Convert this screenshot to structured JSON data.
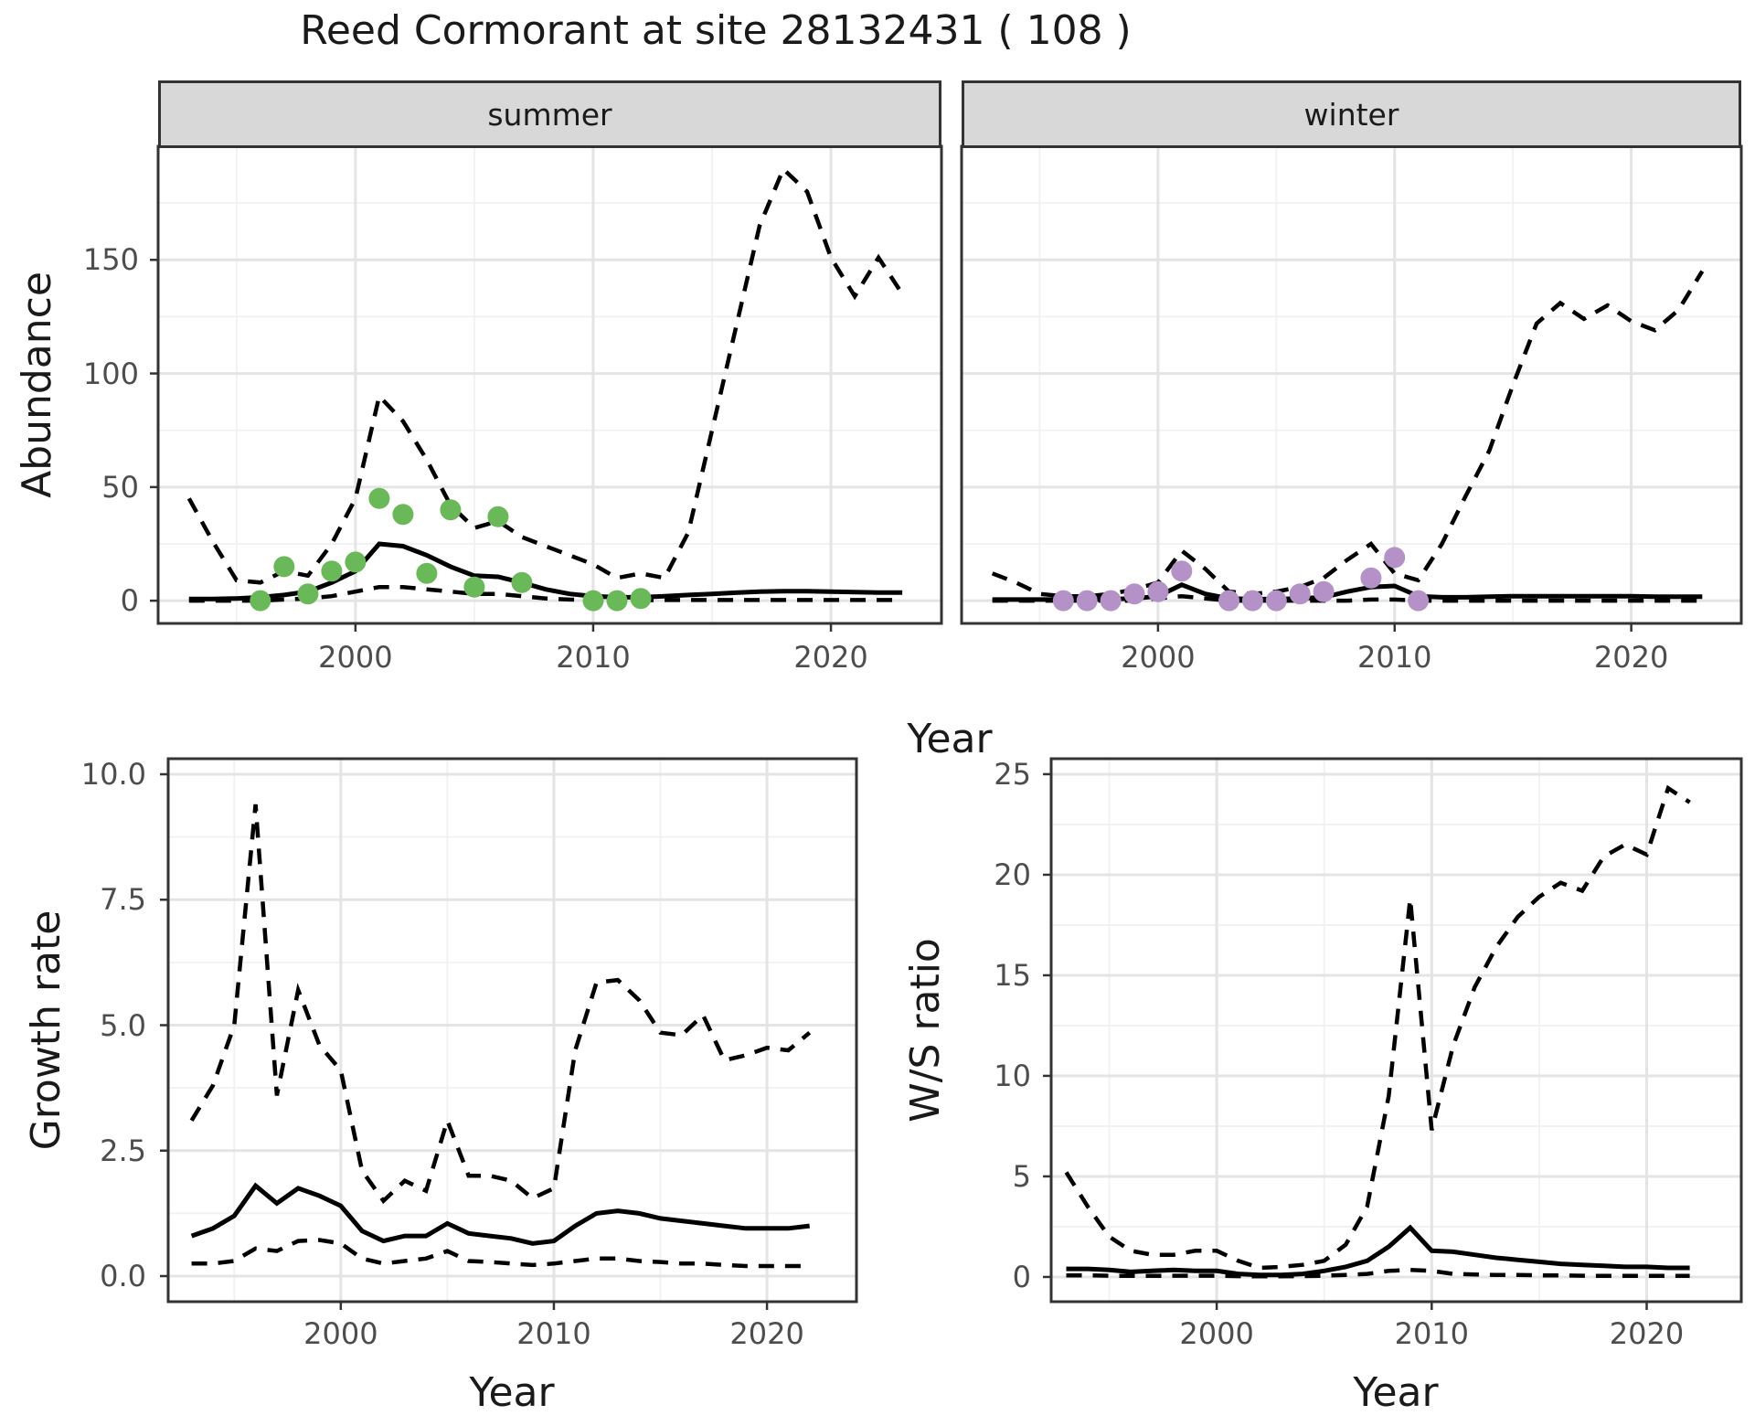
{
  "title": "Reed Cormorant at site 28132431 ( 108 )",
  "axes": {
    "x_label": "Year",
    "y_label_top": "Abundance",
    "y_label_growth": "Growth rate",
    "y_label_ws": "W/S ratio"
  },
  "colors": {
    "observed_summer": "#69B959",
    "observed_winter": "#B492C8",
    "line": "#000000",
    "grid_major": "#E4E4E4",
    "grid_minor": "#F1F1F1",
    "panel_border": "#333333",
    "strip_bg": "#D8D8D8",
    "tick_text": "#4D4D4D",
    "panel_bg": "#FFFFFF"
  },
  "chart_data": [
    {
      "id": "abundance-summer",
      "type": "line",
      "facet_label": "summer",
      "title": "",
      "xlabel": "Year",
      "ylabel": "Abundance",
      "xlim": [
        1991.7,
        2024.65
      ],
      "ylim": [
        -10,
        200
      ],
      "grid": true,
      "legend": "none",
      "x_major": [
        2000,
        2010,
        2020
      ],
      "x_minor": [
        1995,
        2005,
        2015
      ],
      "y_major": [
        0,
        50,
        100,
        150
      ],
      "y_minor": [
        25,
        75,
        125,
        175
      ],
      "x_tick_labels": [
        "2000",
        "2010",
        "2020"
      ],
      "y_tick_labels": [
        "0",
        "50",
        "100",
        "150"
      ],
      "x": [
        1993,
        1994,
        1995,
        1996,
        1997,
        1998,
        1999,
        2000,
        2001,
        2002,
        2003,
        2004,
        2005,
        2006,
        2007,
        2008,
        2009,
        2010,
        2011,
        2012,
        2013,
        2014,
        2015,
        2016,
        2017,
        2018,
        2019,
        2020,
        2021,
        2022,
        2023
      ],
      "series": [
        {
          "name": "upper-ci",
          "style": "dashed",
          "values": [
            45,
            26,
            9,
            8,
            13,
            11,
            25,
            45,
            90,
            79,
            62,
            42,
            32,
            35,
            28,
            24,
            20,
            16,
            10,
            12,
            10,
            30,
            75,
            120,
            165,
            190,
            180,
            151,
            134,
            151,
            135
          ]
        },
        {
          "name": "fitted-mean",
          "style": "solid",
          "values": [
            0.8,
            0.8,
            1,
            1.5,
            2.5,
            4,
            8,
            13,
            25,
            24,
            20,
            15,
            11,
            10.5,
            8,
            5,
            3,
            2,
            1.5,
            1.5,
            2,
            2.5,
            3,
            3.5,
            4,
            4.2,
            4.2,
            4,
            3.8,
            3.6,
            3.6
          ]
        },
        {
          "name": "lower-ci",
          "style": "dashed",
          "values": [
            0,
            0,
            0,
            0,
            0.5,
            1,
            2,
            4,
            6,
            6,
            5,
            4,
            3,
            3,
            2,
            1,
            0.5,
            0.3,
            0.2,
            0.2,
            0.3,
            0.3,
            0.3,
            0.3,
            0.3,
            0.3,
            0.3,
            0.3,
            0.3,
            0.3,
            0.3
          ]
        }
      ],
      "points": {
        "name": "observed-counts-summer",
        "color": "#69B959",
        "data": [
          [
            1996,
            0
          ],
          [
            1997,
            15
          ],
          [
            1998,
            3
          ],
          [
            1999,
            13
          ],
          [
            2000,
            17
          ],
          [
            2001,
            45
          ],
          [
            2002,
            38
          ],
          [
            2003,
            12
          ],
          [
            2004,
            40
          ],
          [
            2005,
            6
          ],
          [
            2006,
            37
          ],
          [
            2007,
            8
          ],
          [
            2010,
            0
          ],
          [
            2011,
            0
          ],
          [
            2012,
            1
          ]
        ]
      }
    },
    {
      "id": "abundance-winter",
      "type": "line",
      "facet_label": "winter",
      "title": "",
      "xlabel": "Year",
      "ylabel": "Abundance",
      "xlim": [
        1991.7,
        2024.65
      ],
      "ylim": [
        -10,
        200
      ],
      "grid": true,
      "legend": "none",
      "x_major": [
        2000,
        2010,
        2020
      ],
      "x_minor": [
        1995,
        2005,
        2015
      ],
      "y_major": [
        0,
        50,
        100,
        150
      ],
      "y_minor": [
        25,
        75,
        125,
        175
      ],
      "x_tick_labels": [
        "2000",
        "2010",
        "2020"
      ],
      "y_tick_labels": [],
      "x": [
        1993,
        1994,
        1995,
        1996,
        1997,
        1998,
        1999,
        2000,
        2001,
        2002,
        2003,
        2004,
        2005,
        2006,
        2007,
        2008,
        2009,
        2010,
        2011,
        2012,
        2013,
        2014,
        2015,
        2016,
        2017,
        2018,
        2019,
        2020,
        2021,
        2022,
        2023
      ],
      "series": [
        {
          "name": "upper-ci",
          "style": "dashed",
          "values": [
            12,
            8,
            3,
            2,
            2,
            3,
            5,
            8,
            22,
            14,
            4,
            3,
            4,
            6,
            10,
            18,
            25,
            12,
            9,
            25,
            46,
            66,
            95,
            122,
            131,
            124,
            130,
            123,
            119,
            128,
            145
          ]
        },
        {
          "name": "fitted-mean",
          "style": "solid",
          "values": [
            0.5,
            0.5,
            0.5,
            0.5,
            0.5,
            0.7,
            1,
            2,
            7,
            3,
            1,
            0.7,
            0.7,
            1,
            1.5,
            4,
            6,
            6.5,
            2,
            1.5,
            1.5,
            1.8,
            2,
            2,
            2,
            2,
            2,
            2,
            1.8,
            1.8,
            1.8
          ]
        },
        {
          "name": "lower-ci",
          "style": "dashed",
          "values": [
            0,
            0,
            0,
            0,
            0,
            0,
            0,
            1,
            2,
            1,
            0,
            0,
            0,
            0,
            0,
            0,
            0.5,
            0.5,
            0,
            0,
            0,
            0,
            0,
            0,
            0,
            0,
            0,
            0,
            0,
            0,
            0
          ]
        }
      ],
      "points": {
        "name": "observed-counts-winter",
        "color": "#B492C8",
        "data": [
          [
            1996,
            0
          ],
          [
            1997,
            0
          ],
          [
            1998,
            0
          ],
          [
            1999,
            3
          ],
          [
            2000,
            4
          ],
          [
            2001,
            13
          ],
          [
            2003,
            0
          ],
          [
            2004,
            0
          ],
          [
            2005,
            0
          ],
          [
            2006,
            3
          ],
          [
            2007,
            4
          ],
          [
            2009,
            10
          ],
          [
            2010,
            19
          ],
          [
            2011,
            0
          ]
        ]
      }
    },
    {
      "id": "growth-rate",
      "type": "line",
      "facet_label": "",
      "title": "",
      "xlabel": "Year",
      "ylabel": "Growth rate",
      "xlim": [
        1991.9,
        2024.2
      ],
      "ylim": [
        -0.51,
        10.31
      ],
      "grid": true,
      "legend": "none",
      "x_major": [
        2000,
        2010,
        2020
      ],
      "x_minor": [
        1995,
        2005,
        2015
      ],
      "y_major": [
        0,
        2.5,
        5,
        7.5,
        10
      ],
      "y_minor": [
        1.25,
        3.75,
        6.25,
        8.75
      ],
      "x_tick_labels": [
        "2000",
        "2010",
        "2020"
      ],
      "y_tick_labels": [
        "0.0",
        "2.5",
        "5.0",
        "7.5",
        "10.0"
      ],
      "x": [
        1993,
        1994,
        1995,
        1996,
        1997,
        1998,
        1999,
        2000,
        2001,
        2002,
        2003,
        2004,
        2005,
        2006,
        2007,
        2008,
        2009,
        2010,
        2011,
        2012,
        2013,
        2014,
        2015,
        2016,
        2017,
        2018,
        2019,
        2020,
        2021,
        2022
      ],
      "series": [
        {
          "name": "upper-ci",
          "style": "dashed",
          "values": [
            3.1,
            3.8,
            5.0,
            9.4,
            3.6,
            5.7,
            4.6,
            4.1,
            2.1,
            1.5,
            1.9,
            1.7,
            3.1,
            2.0,
            2.0,
            1.9,
            1.55,
            1.75,
            4.5,
            5.85,
            5.9,
            5.5,
            4.85,
            4.8,
            5.2,
            4.3,
            4.4,
            4.55,
            4.5,
            4.85
          ]
        },
        {
          "name": "fitted-mean",
          "style": "solid",
          "values": [
            0.8,
            0.95,
            1.2,
            1.8,
            1.45,
            1.75,
            1.6,
            1.4,
            0.9,
            0.7,
            0.8,
            0.8,
            1.05,
            0.85,
            0.8,
            0.75,
            0.65,
            0.7,
            1.0,
            1.25,
            1.3,
            1.25,
            1.15,
            1.1,
            1.05,
            1.0,
            0.95,
            0.95,
            0.95,
            1.0
          ]
        },
        {
          "name": "lower-ci",
          "style": "dashed",
          "values": [
            0.25,
            0.25,
            0.3,
            0.55,
            0.5,
            0.7,
            0.72,
            0.65,
            0.35,
            0.25,
            0.3,
            0.35,
            0.5,
            0.3,
            0.28,
            0.25,
            0.22,
            0.25,
            0.3,
            0.35,
            0.35,
            0.3,
            0.28,
            0.25,
            0.25,
            0.22,
            0.2,
            0.2,
            0.2,
            0.2
          ]
        }
      ],
      "points": null
    },
    {
      "id": "ws-ratio",
      "type": "line",
      "facet_label": "",
      "title": "",
      "xlabel": "Year",
      "ylabel": "W/S ratio",
      "xlim": [
        1992.3,
        2024.4
      ],
      "ylim": [
        -1.23,
        25.77
      ],
      "grid": true,
      "legend": "none",
      "x_major": [
        2000,
        2010,
        2020
      ],
      "x_minor": [
        1995,
        2005,
        2015
      ],
      "y_major": [
        0,
        5,
        10,
        15,
        20,
        25
      ],
      "y_minor": [
        2.5,
        7.5,
        12.5,
        17.5,
        22.5
      ],
      "x_tick_labels": [
        "2000",
        "2010",
        "2020"
      ],
      "y_tick_labels": [
        "0",
        "5",
        "10",
        "15",
        "20",
        "25"
      ],
      "x": [
        1993,
        1994,
        1995,
        1996,
        1997,
        1998,
        1999,
        2000,
        2001,
        2002,
        2003,
        2004,
        2005,
        2006,
        2007,
        2008,
        2009,
        2010,
        2011,
        2012,
        2013,
        2014,
        2015,
        2016,
        2017,
        2018,
        2019,
        2020,
        2021,
        2022
      ],
      "series": [
        {
          "name": "upper-ci",
          "style": "dashed",
          "values": [
            5.2,
            3.5,
            2.0,
            1.3,
            1.1,
            1.1,
            1.3,
            1.3,
            0.8,
            0.45,
            0.5,
            0.6,
            0.8,
            1.6,
            3.5,
            9.0,
            18.8,
            7.3,
            11.5,
            14.4,
            16.4,
            17.9,
            18.9,
            19.6,
            19.2,
            20.9,
            21.5,
            21.0,
            24.3,
            23.6
          ]
        },
        {
          "name": "fitted-mean",
          "style": "solid",
          "values": [
            0.4,
            0.4,
            0.35,
            0.25,
            0.3,
            0.35,
            0.3,
            0.3,
            0.15,
            0.1,
            0.1,
            0.15,
            0.3,
            0.5,
            0.8,
            1.5,
            2.45,
            1.3,
            1.25,
            1.1,
            0.95,
            0.85,
            0.75,
            0.65,
            0.6,
            0.55,
            0.5,
            0.5,
            0.45,
            0.45
          ]
        },
        {
          "name": "lower-ci",
          "style": "dashed",
          "values": [
            0.08,
            0.08,
            0.06,
            0.05,
            0.05,
            0.06,
            0.06,
            0.06,
            0.04,
            0.03,
            0.03,
            0.04,
            0.06,
            0.1,
            0.15,
            0.3,
            0.35,
            0.3,
            0.15,
            0.12,
            0.1,
            0.1,
            0.08,
            0.08,
            0.06,
            0.05,
            0.05,
            0.05,
            0.05,
            0.05
          ]
        }
      ],
      "points": null
    }
  ]
}
